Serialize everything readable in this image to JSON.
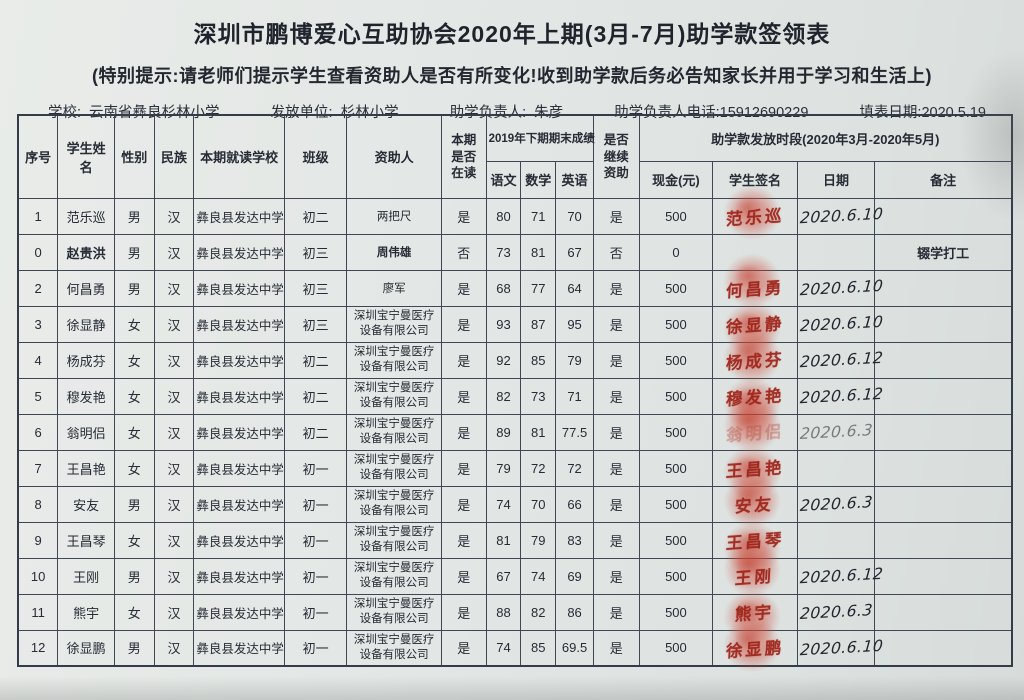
{
  "page": {
    "title": "深圳市鹏博爱心互助协会2020年上期(3月-7月)助学款签领表",
    "notice": "(特别提示:请老师们提示学生查看资助人是否有所变化!收到助学款后务必告知家长并用于学习和生活上)",
    "info": {
      "school_label": "学校:",
      "school": "云南省彝良杉林小学",
      "issuer_label": "发放单位:",
      "issuer": "杉林小学",
      "manager_label": "助学负责人:",
      "manager": "朱彦",
      "phone_label": "助学负责人电话:",
      "phone": "15912690229",
      "fill_date_label": "填表日期:",
      "fill_date": "2020.5.19"
    }
  },
  "table": {
    "headers": {
      "no": "序号",
      "name": "学生姓名",
      "gender": "性别",
      "ethnicity": "民族",
      "school": "本期就读学校",
      "grade": "班级",
      "sponsor": "资助人",
      "enrolled": "本期是否在读",
      "scores_group": "2019年下期期末成绩",
      "chinese": "语文",
      "math": "数学",
      "english": "英语",
      "continue": "是否继续资助",
      "payment_group": "助学款发放时段(2020年3月-2020年5月)",
      "cash": "现金(元)",
      "signature": "学生签名",
      "date": "日期",
      "remark": "备注"
    },
    "rows": [
      {
        "no": "1",
        "name": "范乐巡",
        "gender": "男",
        "ethnicity": "汉",
        "school": "彝良县发达中学",
        "grade": "初二",
        "sponsor": "两把尺",
        "enrolled": "是",
        "chinese": "80",
        "math": "71",
        "english": "70",
        "continue": "是",
        "cash": "500",
        "signature": "范乐巡",
        "sign_date": "2020.6.10",
        "remark": "",
        "fingerprint": true,
        "bold": false
      },
      {
        "no": "0",
        "name": "赵贵洪",
        "gender": "男",
        "ethnicity": "汉",
        "school": "彝良县发达中学",
        "grade": "初三",
        "sponsor": "周伟雄",
        "enrolled": "否",
        "chinese": "73",
        "math": "81",
        "english": "67",
        "continue": "否",
        "cash": "0",
        "signature": "",
        "sign_date": "",
        "remark": "辍学打工",
        "fingerprint": false,
        "bold": true
      },
      {
        "no": "2",
        "name": "何昌勇",
        "gender": "男",
        "ethnicity": "汉",
        "school": "彝良县发达中学",
        "grade": "初三",
        "sponsor": "廖军",
        "enrolled": "是",
        "chinese": "68",
        "math": "77",
        "english": "64",
        "continue": "是",
        "cash": "500",
        "signature": "何昌勇",
        "sign_date": "2020.6.10",
        "remark": "",
        "fingerprint": true,
        "bold": false
      },
      {
        "no": "3",
        "name": "徐显静",
        "gender": "女",
        "ethnicity": "汉",
        "school": "彝良县发达中学",
        "grade": "初三",
        "sponsor": "深圳宝宁曼医疗设备有限公司",
        "enrolled": "是",
        "chinese": "93",
        "math": "87",
        "english": "95",
        "continue": "是",
        "cash": "500",
        "signature": "徐显静",
        "sign_date": "2020.6.10",
        "remark": "",
        "fingerprint": true,
        "bold": false
      },
      {
        "no": "4",
        "name": "杨成芬",
        "gender": "女",
        "ethnicity": "汉",
        "school": "彝良县发达中学",
        "grade": "初二",
        "sponsor": "深圳宝宁曼医疗设备有限公司",
        "enrolled": "是",
        "chinese": "92",
        "math": "85",
        "english": "79",
        "continue": "是",
        "cash": "500",
        "signature": "杨成芬",
        "sign_date": "2020.6.12",
        "remark": "",
        "fingerprint": true,
        "bold": false
      },
      {
        "no": "5",
        "name": "穆发艳",
        "gender": "女",
        "ethnicity": "汉",
        "school": "彝良县发达中学",
        "grade": "初二",
        "sponsor": "深圳宝宁曼医疗设备有限公司",
        "enrolled": "是",
        "chinese": "82",
        "math": "73",
        "english": "71",
        "continue": "是",
        "cash": "500",
        "signature": "穆发艳",
        "sign_date": "2020.6.12",
        "remark": "",
        "fingerprint": true,
        "bold": false
      },
      {
        "no": "6",
        "name": "翁明侣",
        "gender": "女",
        "ethnicity": "汉",
        "school": "彝良县发达中学",
        "grade": "初二",
        "sponsor": "深圳宝宁曼医疗设备有限公司",
        "enrolled": "是",
        "chinese": "89",
        "math": "81",
        "english": "77.5",
        "continue": "是",
        "cash": "500",
        "signature": "翁明侣",
        "sign_date": "2020.6.3",
        "remark": "",
        "fingerprint": true,
        "bold": false
      },
      {
        "no": "7",
        "name": "王昌艳",
        "gender": "女",
        "ethnicity": "汉",
        "school": "彝良县发达中学",
        "grade": "初一",
        "sponsor": "深圳宝宁曼医疗设备有限公司",
        "enrolled": "是",
        "chinese": "79",
        "math": "72",
        "english": "72",
        "continue": "是",
        "cash": "500",
        "signature": "王昌艳",
        "sign_date": "",
        "remark": "",
        "fingerprint": true,
        "bold": false
      },
      {
        "no": "8",
        "name": "安友",
        "gender": "男",
        "ethnicity": "汉",
        "school": "彝良县发达中学",
        "grade": "初一",
        "sponsor": "深圳宝宁曼医疗设备有限公司",
        "enrolled": "是",
        "chinese": "74",
        "math": "70",
        "english": "66",
        "continue": "是",
        "cash": "500",
        "signature": "安友",
        "sign_date": "2020.6.3",
        "remark": "",
        "fingerprint": true,
        "bold": false
      },
      {
        "no": "9",
        "name": "王昌琴",
        "gender": "女",
        "ethnicity": "汉",
        "school": "彝良县发达中学",
        "grade": "初一",
        "sponsor": "深圳宝宁曼医疗设备有限公司",
        "enrolled": "是",
        "chinese": "81",
        "math": "79",
        "english": "83",
        "continue": "是",
        "cash": "500",
        "signature": "王昌琴",
        "sign_date": "",
        "remark": "",
        "fingerprint": true,
        "bold": false
      },
      {
        "no": "10",
        "name": "王刚",
        "gender": "男",
        "ethnicity": "汉",
        "school": "彝良县发达中学",
        "grade": "初一",
        "sponsor": "深圳宝宁曼医疗设备有限公司",
        "enrolled": "是",
        "chinese": "67",
        "math": "74",
        "english": "69",
        "continue": "是",
        "cash": "500",
        "signature": "王刚",
        "sign_date": "2020.6.12",
        "remark": "",
        "fingerprint": true,
        "bold": false
      },
      {
        "no": "11",
        "name": "熊宇",
        "gender": "女",
        "ethnicity": "汉",
        "school": "彝良县发达中学",
        "grade": "初一",
        "sponsor": "深圳宝宁曼医疗设备有限公司",
        "enrolled": "是",
        "chinese": "88",
        "math": "82",
        "english": "86",
        "continue": "是",
        "cash": "500",
        "signature": "熊宇",
        "sign_date": "2020.6.3",
        "remark": "",
        "fingerprint": true,
        "bold": false
      },
      {
        "no": "12",
        "name": "徐显鹏",
        "gender": "男",
        "ethnicity": "汉",
        "school": "彝良县发达中学",
        "grade": "初一",
        "sponsor": "深圳宝宁曼医疗设备有限公司",
        "enrolled": "是",
        "chinese": "74",
        "math": "85",
        "english": "69.5",
        "continue": "是",
        "cash": "500",
        "signature": "徐显鹏",
        "sign_date": "2020.6.10",
        "remark": "",
        "fingerprint": true,
        "bold": false
      }
    ]
  },
  "colors": {
    "paper": "#e3e7e5",
    "grid_line": "#3f4654",
    "ink": "#262b35",
    "stamp_red": "#cd4938",
    "signature_red": "#9e2218"
  }
}
